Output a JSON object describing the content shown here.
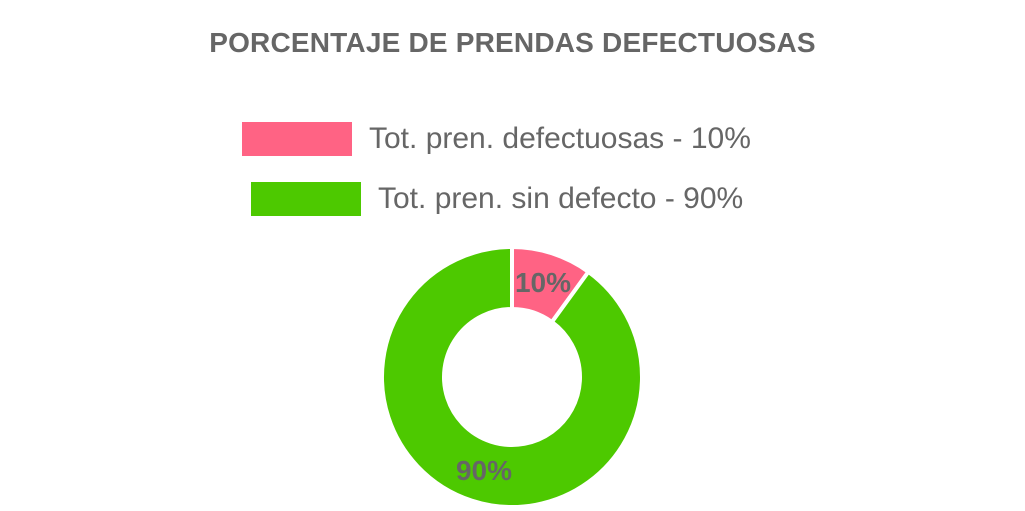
{
  "chart_data": {
    "type": "pie",
    "title": "PORCENTAJE DE PRENDAS DEFECTUOSAS",
    "legend_position": "top",
    "series": [
      {
        "name": "Tot. pren. defectuosas - 10%",
        "value": 10,
        "label": "10%",
        "color": "#ff6384"
      },
      {
        "name": "Tot. pren. sin defecto - 90%",
        "value": 90,
        "label": "90%",
        "color": "#4dc900"
      }
    ]
  }
}
